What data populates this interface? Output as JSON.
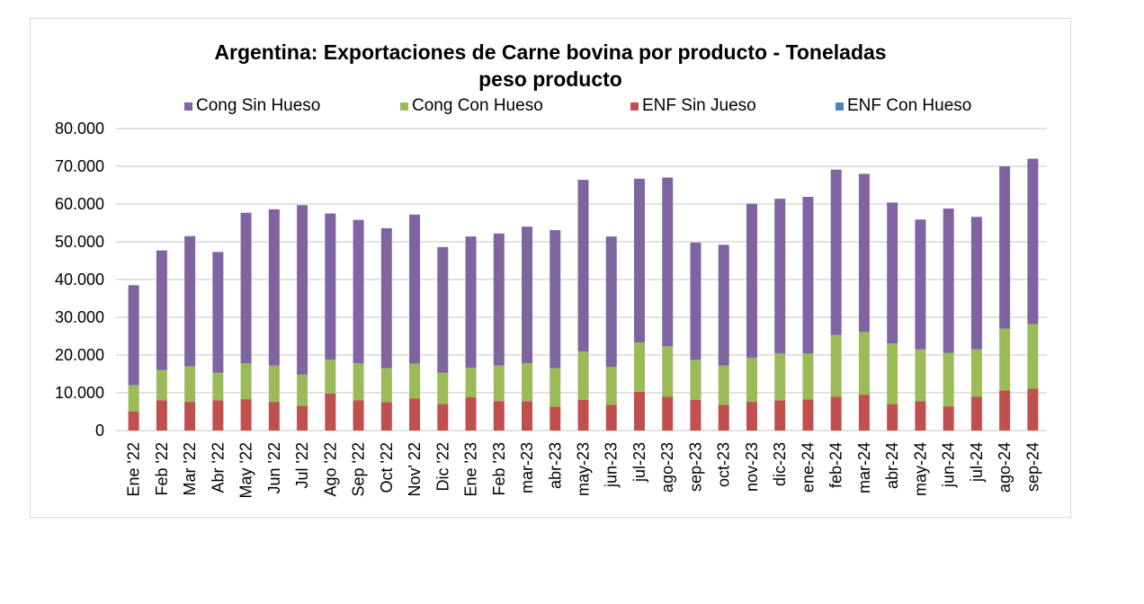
{
  "chart_data": {
    "type": "bar",
    "stacked": true,
    "title": "Argentina: Exportaciones de Carne bovina por producto - Toneladas peso producto",
    "title_lines": [
      "Argentina: Exportaciones de Carne bovina por producto - Toneladas",
      "peso producto"
    ],
    "xlabel": "",
    "ylabel": "",
    "ylim": [
      0,
      80000
    ],
    "yticks": [
      "0",
      "10.000",
      "20.000",
      "30.000",
      "40.000",
      "50.000",
      "60.000",
      "70.000",
      "80.000"
    ],
    "grid": true,
    "legend_position": "top",
    "categories": [
      "Ene '22",
      "Feb '22",
      "Mar '22",
      "Abr '22",
      "May '22",
      "Jun '22",
      "Jul '22",
      "Ago '22",
      "Sep '22",
      "Oct '22",
      "Nov' 22",
      "Dic '22",
      "Ene '23",
      "Feb '23",
      "mar-23",
      "abr-23",
      "may-23",
      "jun-23",
      "jul-23",
      "ago-23",
      "sep-23",
      "oct-23",
      "nov-23",
      "dic-23",
      "ene-24",
      "feb-24",
      "mar-24",
      "abr-24",
      "may-24",
      "jun-24",
      "jul-24",
      "ago-24",
      "sep-24"
    ],
    "series": [
      {
        "name": "ENF Sin Jueso",
        "color": "#c0504d",
        "values": [
          5000,
          8000,
          7600,
          8000,
          8300,
          7600,
          6600,
          9800,
          8000,
          7500,
          8500,
          7000,
          8800,
          7800,
          7800,
          6300,
          8100,
          6800,
          10300,
          9000,
          8100,
          6800,
          7600,
          8000,
          8200,
          9000,
          9500,
          7000,
          7800,
          6400,
          9000,
          10600,
          11100
        ]
      },
      {
        "name": "Cong Con Hueso",
        "color": "#9bbb59",
        "values": [
          7000,
          8000,
          9400,
          7300,
          9500,
          9600,
          8200,
          9000,
          9800,
          9000,
          9200,
          8300,
          7800,
          9400,
          10000,
          10200,
          12800,
          10100,
          13000,
          13300,
          10600,
          10400,
          11700,
          12400,
          12200,
          16300,
          16600,
          16100,
          13700,
          14200,
          12500,
          16400,
          17100
        ]
      },
      {
        "name": "Cong Sin Hueso",
        "color": "#8064a2",
        "values": [
          26500,
          31700,
          34500,
          32000,
          39900,
          41400,
          44900,
          38700,
          38000,
          37100,
          39500,
          33300,
          34800,
          35000,
          36200,
          36600,
          45500,
          34500,
          43400,
          44700,
          31100,
          32000,
          40800,
          41000,
          41500,
          43800,
          41900,
          37300,
          34400,
          38200,
          35100,
          43000,
          43800
        ]
      },
      {
        "name": "ENF Con Hueso",
        "color": "#4f81bd",
        "values": [
          0,
          0,
          0,
          0,
          0,
          0,
          0,
          0,
          0,
          0,
          0,
          0,
          0,
          0,
          0,
          0,
          0,
          0,
          0,
          0,
          0,
          0,
          0,
          0,
          0,
          0,
          0,
          0,
          0,
          0,
          0,
          0,
          0
        ]
      }
    ],
    "legend": [
      {
        "name": "Cong Sin Hueso",
        "color": "#8064a2"
      },
      {
        "name": "Cong Con Hueso",
        "color": "#9bbb59"
      },
      {
        "name": "ENF Sin Jueso",
        "color": "#c0504d"
      },
      {
        "name": "ENF Con Hueso",
        "color": "#4f81bd"
      }
    ]
  }
}
